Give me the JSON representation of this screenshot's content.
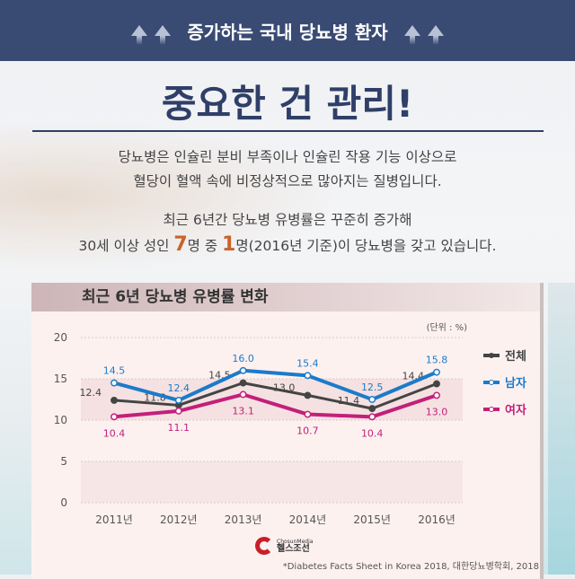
{
  "header": {
    "title": "증가하는 국내 당뇨병 환자"
  },
  "headline": "중요한 건 관리!",
  "para1": [
    "당뇨병은 인슐린 분비 부족이나 인슐린 작용 기능 이상으로",
    "혈당이 혈액 속에 비정상적으로 많아지는 질병입니다."
  ],
  "para2": {
    "line1": "최근 6년간 당뇨병 유병률은 꾸준히 증가해",
    "l2a": "30세 이상 성인 ",
    "n7": "7",
    "l2b": "명 중 ",
    "n1": "1",
    "l2c": "명(2016년 기준)이 당뇨병을 갖고 있습니다."
  },
  "logo": {
    "small": "ChosunMedia",
    "name": "헬스조선"
  },
  "source": "*Diabetes Facts Sheet in Korea 2018, 대한당뇨병학회, 2018",
  "chart_data": {
    "type": "line",
    "title": "최근 6년 당뇨병 유병률 변화",
    "unit": "(단위 : %)",
    "categories": [
      "2011년",
      "2012년",
      "2013년",
      "2014년",
      "2015년",
      "2016년"
    ],
    "yticks": [
      "0",
      "5",
      "10",
      "15",
      "20"
    ],
    "ylim": [
      0,
      20
    ],
    "series": [
      {
        "name": "전체",
        "color": "#444444",
        "values": [
          12.4,
          11.8,
          14.5,
          13.0,
          11.4,
          14.4
        ],
        "labels": [
          "12.4",
          "11.8",
          "14.5",
          "13.0",
          "11.4",
          "14.4"
        ]
      },
      {
        "name": "남자",
        "color": "#1b7bc9",
        "values": [
          14.5,
          12.4,
          16.0,
          15.4,
          12.5,
          15.8
        ],
        "labels": [
          "14.5",
          "12.4",
          "16.0",
          "15.4",
          "12.5",
          "15.8"
        ]
      },
      {
        "name": "여자",
        "color": "#c2207a",
        "values": [
          10.4,
          11.1,
          13.1,
          10.7,
          10.4,
          13.0
        ],
        "labels": [
          "10.4",
          "11.1",
          "13.1",
          "10.7",
          "10.4",
          "13.0"
        ]
      }
    ],
    "legend": "right"
  }
}
